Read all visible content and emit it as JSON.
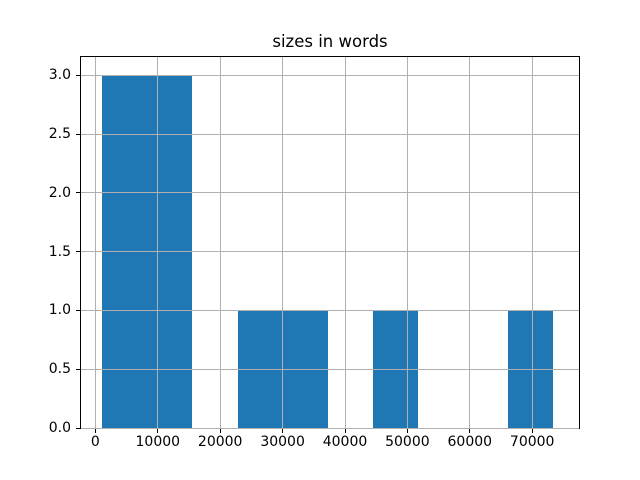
{
  "chart_data": {
    "type": "bar",
    "subtype": "histogram",
    "title": "sizes in words",
    "xlabel": "",
    "ylabel": "",
    "bin_edges": [
      1100,
      8330,
      15560,
      22790,
      30020,
      37250,
      44480,
      51710,
      58940,
      66170,
      73400
    ],
    "counts": [
      3,
      3,
      0,
      1,
      1,
      0,
      1,
      0,
      0,
      1
    ],
    "bars": [
      {
        "x0": 1100,
        "x1": 15560,
        "height": 3
      },
      {
        "x0": 22790,
        "x1": 37250,
        "height": 1
      },
      {
        "x0": 44480,
        "x1": 51710,
        "height": 1
      },
      {
        "x0": 66170,
        "x1": 73400,
        "height": 1
      }
    ],
    "xlim": [
      -2300,
      77500
    ],
    "ylim": [
      0,
      3.156
    ],
    "x_ticks": [
      0,
      10000,
      20000,
      30000,
      40000,
      50000,
      60000,
      70000
    ],
    "x_tick_labels": [
      "0",
      "10000",
      "20000",
      "30000",
      "40000",
      "50000",
      "60000",
      "70000"
    ],
    "y_ticks": [
      0.0,
      0.5,
      1.0,
      1.5,
      2.0,
      2.5,
      3.0
    ],
    "y_tick_labels": [
      "0.0",
      "0.5",
      "1.0",
      "1.5",
      "2.0",
      "2.5",
      "3.0"
    ],
    "grid": true,
    "grid_on_top_of_bars": true,
    "legend": null,
    "colors": {
      "bar_fill": "#1f77b4",
      "grid": "#b0b0b0",
      "spine": "#000000",
      "background": "#ffffff",
      "text": "#000000"
    }
  }
}
